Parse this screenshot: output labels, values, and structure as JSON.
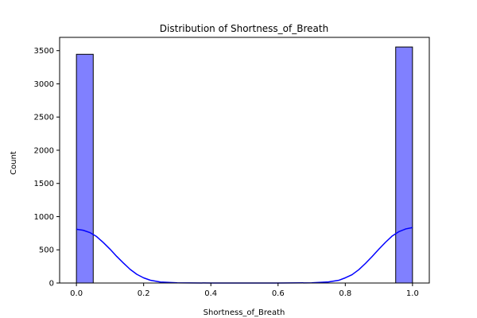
{
  "chart_data": {
    "type": "bar",
    "title": "Distribution of Shortness_of_Breath",
    "xlabel": "Shortness_of_Breath",
    "ylabel": "Count",
    "xlim": [
      -0.05,
      1.05
    ],
    "ylim": [
      0,
      3700
    ],
    "xticks": [
      0.0,
      0.2,
      0.4,
      0.6,
      0.8,
      1.0
    ],
    "xtick_labels": [
      "0.0",
      "0.2",
      "0.4",
      "0.6",
      "0.8",
      "1.0"
    ],
    "yticks": [
      0,
      500,
      1000,
      1500,
      2000,
      2500,
      3000,
      3500
    ],
    "ytick_labels": [
      "0",
      "500",
      "1000",
      "1500",
      "2000",
      "2500",
      "3000",
      "3500"
    ],
    "grid": false,
    "bins": [
      {
        "x0": 0.0,
        "x1": 0.05,
        "count": 3445
      },
      {
        "x0": 0.95,
        "x1": 1.0,
        "count": 3555
      }
    ],
    "kde": {
      "x": [
        0.0,
        0.02,
        0.04,
        0.06,
        0.08,
        0.1,
        0.12,
        0.14,
        0.16,
        0.18,
        0.2,
        0.22,
        0.25,
        0.3,
        0.4,
        0.5,
        0.6,
        0.7,
        0.75,
        0.78,
        0.8,
        0.82,
        0.84,
        0.86,
        0.88,
        0.9,
        0.92,
        0.94,
        0.96,
        0.98,
        1.0
      ],
      "y": [
        810,
        795,
        760,
        700,
        610,
        510,
        400,
        300,
        205,
        130,
        78,
        42,
        15,
        3,
        0,
        0,
        0,
        3,
        16,
        40,
        78,
        125,
        200,
        295,
        400,
        510,
        615,
        710,
        775,
        815,
        835
      ]
    },
    "colors": {
      "bar_fill": "#8080ff",
      "bar_edge": "#000000",
      "kde_line": "#0000ff"
    }
  }
}
